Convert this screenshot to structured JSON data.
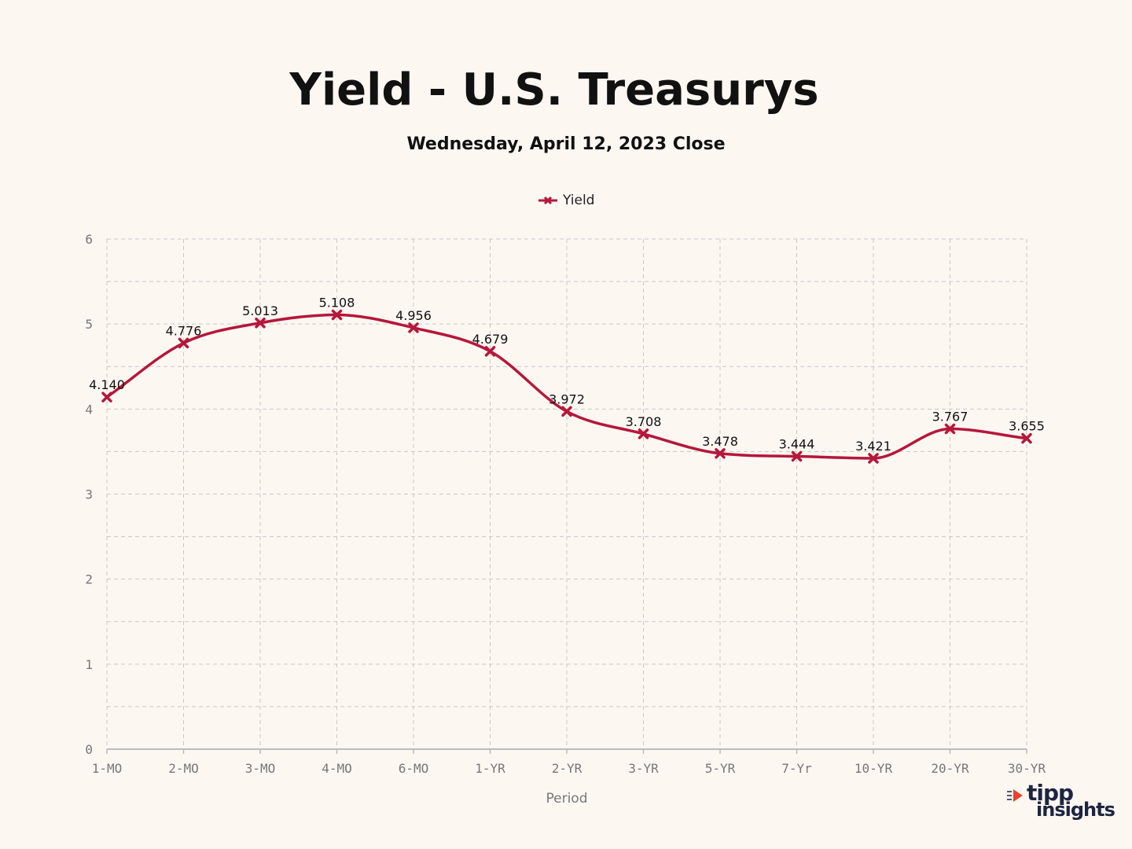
{
  "header": {
    "title": "Yield - U.S. Treasurys",
    "subtitle": "Wednesday, April 12, 2023 Close"
  },
  "logo": {
    "top": "tipp",
    "bottom": "insights"
  },
  "colors": {
    "background": "#fdf7f2",
    "series": "#b5173b",
    "grid": "#c8c8c8",
    "axis": "#bbbbbb"
  },
  "chart_data": {
    "type": "line",
    "title": "Yield - U.S. Treasurys",
    "subtitle": "Wednesday, April 12, 2023 Close",
    "xlabel": "Period",
    "ylabel": "",
    "ylim": [
      0,
      6
    ],
    "yticks": [
      0,
      1,
      2,
      3,
      4,
      5,
      6
    ],
    "categories": [
      "1-MO",
      "2-MO",
      "3-MO",
      "4-MO",
      "6-MO",
      "1-YR",
      "2-YR",
      "3-YR",
      "5-YR",
      "7-Yr",
      "10-YR",
      "20-YR",
      "30-YR"
    ],
    "series": [
      {
        "name": "Yield",
        "values": [
          4.14,
          4.776,
          5.013,
          5.108,
          4.956,
          4.679,
          3.972,
          3.708,
          3.478,
          3.444,
          3.421,
          3.767,
          3.655
        ],
        "labels": [
          "4.140",
          "4.776",
          "5.013",
          "5.108",
          "4.956",
          "4.679",
          "3.972",
          "3.708",
          "3.478",
          "3.444",
          "3.421",
          "3.767",
          "3.655"
        ]
      }
    ],
    "legend": "top-center",
    "grid": true,
    "smooth": true,
    "marker": "x"
  }
}
